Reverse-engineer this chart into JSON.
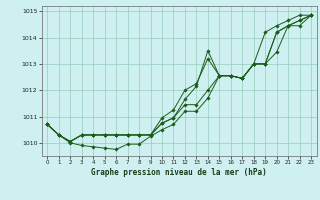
{
  "xlabel": "Graphe pression niveau de la mer (hPa)",
  "bg_color": "#cff0f0",
  "grid_color": "#99ccbb",
  "line_color": "#1a5c1a",
  "ylim": [
    1009.5,
    1015.2
  ],
  "xlim": [
    -0.5,
    23.5
  ],
  "yticks": [
    1010,
    1011,
    1012,
    1013,
    1014,
    1015
  ],
  "xticks": [
    0,
    1,
    2,
    3,
    4,
    5,
    6,
    7,
    8,
    9,
    10,
    11,
    12,
    13,
    14,
    15,
    16,
    17,
    18,
    19,
    20,
    21,
    22,
    23
  ],
  "lines": [
    [
      1010.7,
      1010.3,
      1010.0,
      1009.9,
      1009.85,
      1009.8,
      1009.75,
      1009.95,
      1009.95,
      1010.25,
      1010.5,
      1010.7,
      1011.2,
      1011.2,
      1011.7,
      1012.55,
      1012.55,
      1012.45,
      1013.0,
      1013.0,
      1014.2,
      1014.45,
      1014.65,
      1014.85
    ],
    [
      1010.7,
      1010.3,
      1010.05,
      1010.3,
      1010.3,
      1010.3,
      1010.3,
      1010.3,
      1010.3,
      1010.3,
      1010.75,
      1010.95,
      1011.45,
      1011.45,
      1012.0,
      1012.55,
      1012.55,
      1012.45,
      1013.0,
      1014.2,
      1014.45,
      1014.65,
      1014.85,
      1014.85
    ],
    [
      1010.7,
      1010.3,
      1010.05,
      1010.3,
      1010.3,
      1010.3,
      1010.3,
      1010.3,
      1010.3,
      1010.3,
      1010.95,
      1011.25,
      1012.0,
      1012.25,
      1013.2,
      1012.55,
      1012.55,
      1012.45,
      1013.0,
      1013.0,
      1014.2,
      1014.45,
      1014.45,
      1014.85
    ],
    [
      1010.7,
      1010.3,
      1010.05,
      1010.3,
      1010.3,
      1010.3,
      1010.3,
      1010.3,
      1010.3,
      1010.3,
      1010.75,
      1010.95,
      1011.65,
      1012.15,
      1013.5,
      1012.55,
      1012.55,
      1012.45,
      1013.0,
      1013.0,
      1013.45,
      1014.45,
      1014.65,
      1014.85
    ]
  ]
}
